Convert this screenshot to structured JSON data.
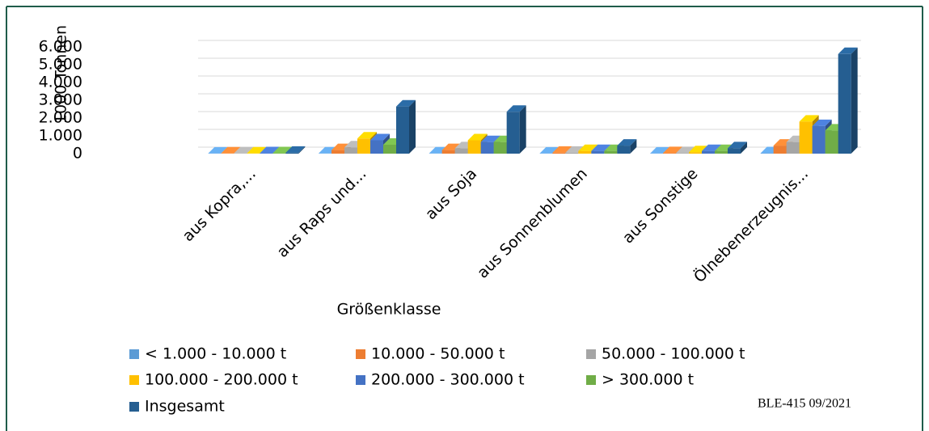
{
  "chart_data": {
    "type": "bar",
    "y_label": "1000 Tonnen",
    "x_label": "Größenklasse",
    "annotation": "BLE-415 09/2021",
    "categories": [
      "aus Kopra,...",
      "aus Raps und...",
      "aus Soja",
      "aus Sonnenblumen",
      "aus Sonstige",
      "Ölnebenerzeugnis..."
    ],
    "series": [
      {
        "name": "< 1.000 - 10.000 t",
        "color": "#5b9bd5",
        "values": [
          5,
          10,
          10,
          5,
          5,
          20
        ]
      },
      {
        "name": "10.000 - 50.000 t",
        "color": "#ed7d31",
        "values": [
          10,
          200,
          200,
          50,
          30,
          450
        ]
      },
      {
        "name": "50.000 - 100.000 t",
        "color": "#a5a5a5",
        "values": [
          10,
          350,
          300,
          50,
          30,
          650
        ]
      },
      {
        "name": "100.000 - 200.000 t",
        "color": "#ffc000",
        "values": [
          10,
          850,
          750,
          150,
          80,
          1800
        ]
      },
      {
        "name": "200.000 - 300.000 t",
        "color": "#4472c4",
        "values": [
          20,
          750,
          650,
          150,
          150,
          1550
        ]
      },
      {
        "name": "> 300.000 t",
        "color": "#70ad47",
        "values": [
          20,
          500,
          650,
          150,
          150,
          1300
        ]
      },
      {
        "name": "Insgesamt",
        "color": "#255e91",
        "values": [
          50,
          2650,
          2350,
          450,
          300,
          5600
        ]
      }
    ],
    "ylim": [
      0,
      6000
    ],
    "yticks": [
      0,
      {
        "value": 1000,
        "label": "1.000"
      },
      {
        "value": 2000,
        "label": "2.000"
      },
      {
        "value": 3000,
        "label": "3.000"
      },
      {
        "value": 4000,
        "label": "4.000"
      },
      {
        "value": 5000,
        "label": "5.000"
      },
      {
        "value": 6000,
        "label": "6.000"
      }
    ],
    "grid": true
  }
}
